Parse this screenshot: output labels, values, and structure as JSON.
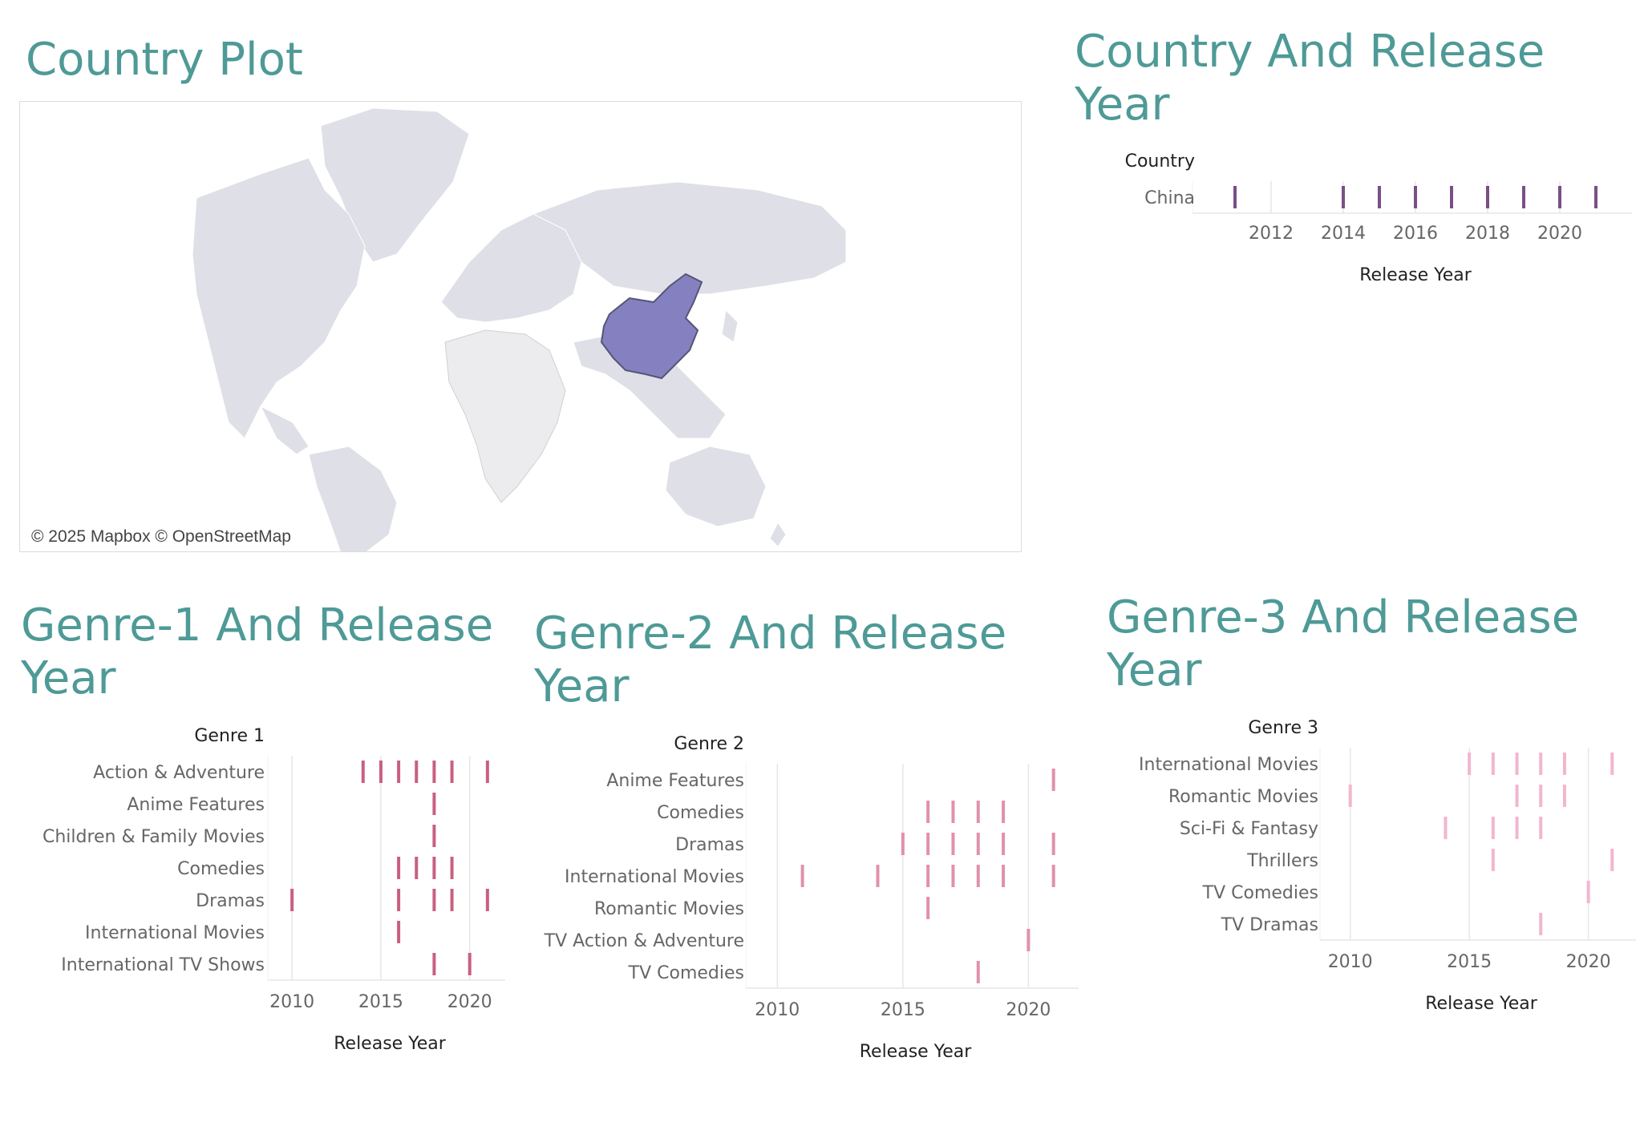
{
  "country_plot": {
    "title": "Country Plot",
    "attribution": "© 2025 Mapbox © OpenStreetMap",
    "highlight_color": "#8580bf",
    "land_color": "#dfdfe7",
    "africa_color": "#ececee"
  },
  "chart_data": [
    {
      "id": "country_release",
      "type": "strip",
      "title": "Country And Release Year",
      "row_header": "Country",
      "xlabel": "Release Year",
      "xlim": [
        2010,
        2022
      ],
      "xticks": [
        2012,
        2014,
        2016,
        2018,
        2020
      ],
      "color": "#7b4f86",
      "rows": [
        {
          "label": "China",
          "years": [
            2011,
            2014,
            2015,
            2016,
            2017,
            2018,
            2019,
            2020,
            2021
          ]
        }
      ]
    },
    {
      "id": "genre1_release",
      "type": "strip",
      "title": "Genre-1 And Release Year",
      "row_header": "Genre 1",
      "xlabel": "Release Year",
      "xlim": [
        2009,
        2022
      ],
      "xticks": [
        2010,
        2015,
        2020
      ],
      "color": "#c9607f",
      "rows": [
        {
          "label": "Action & Adventure",
          "years": [
            2014,
            2015,
            2016,
            2017,
            2018,
            2019,
            2021
          ]
        },
        {
          "label": "Anime Features",
          "years": [
            2018
          ]
        },
        {
          "label": "Children & Family Movies",
          "years": [
            2018
          ]
        },
        {
          "label": "Comedies",
          "years": [
            2016,
            2017,
            2018,
            2019
          ]
        },
        {
          "label": "Dramas",
          "years": [
            2010,
            2016,
            2018,
            2019,
            2021
          ]
        },
        {
          "label": "International Movies",
          "years": [
            2016
          ]
        },
        {
          "label": "International TV Shows",
          "years": [
            2018,
            2020
          ]
        }
      ]
    },
    {
      "id": "genre2_release",
      "type": "strip",
      "title": "Genre-2 And Release Year",
      "row_header": "Genre 2",
      "xlabel": "Release Year",
      "xlim": [
        2009,
        2022
      ],
      "xticks": [
        2010,
        2015,
        2020
      ],
      "color": "#e190ad",
      "rows": [
        {
          "label": "Anime Features",
          "years": [
            2021
          ]
        },
        {
          "label": "Comedies",
          "years": [
            2016,
            2017,
            2018,
            2019
          ]
        },
        {
          "label": "Dramas",
          "years": [
            2015,
            2016,
            2017,
            2018,
            2019,
            2021
          ]
        },
        {
          "label": "International Movies",
          "years": [
            2011,
            2014,
            2016,
            2017,
            2018,
            2019,
            2021
          ]
        },
        {
          "label": "Romantic Movies",
          "years": [
            2016
          ]
        },
        {
          "label": "TV Action & Adventure",
          "years": [
            2020
          ]
        },
        {
          "label": "TV Comedies",
          "years": [
            2018
          ]
        }
      ]
    },
    {
      "id": "genre3_release",
      "type": "strip",
      "title": "Genre-3 And Release Year",
      "row_header": "Genre 3",
      "xlabel": "Release Year",
      "xlim": [
        2009,
        2022
      ],
      "xticks": [
        2010,
        2015,
        2020
      ],
      "color": "#f2b6cf",
      "rows": [
        {
          "label": "International Movies",
          "years": [
            2015,
            2016,
            2017,
            2018,
            2019,
            2021
          ]
        },
        {
          "label": "Romantic Movies",
          "years": [
            2010,
            2017,
            2018,
            2019
          ]
        },
        {
          "label": "Sci-Fi & Fantasy",
          "years": [
            2014,
            2016,
            2017,
            2018
          ]
        },
        {
          "label": "Thrillers",
          "years": [
            2016,
            2021
          ]
        },
        {
          "label": "TV Comedies",
          "years": [
            2020
          ]
        },
        {
          "label": "TV Dramas",
          "years": [
            2018
          ]
        }
      ]
    }
  ]
}
